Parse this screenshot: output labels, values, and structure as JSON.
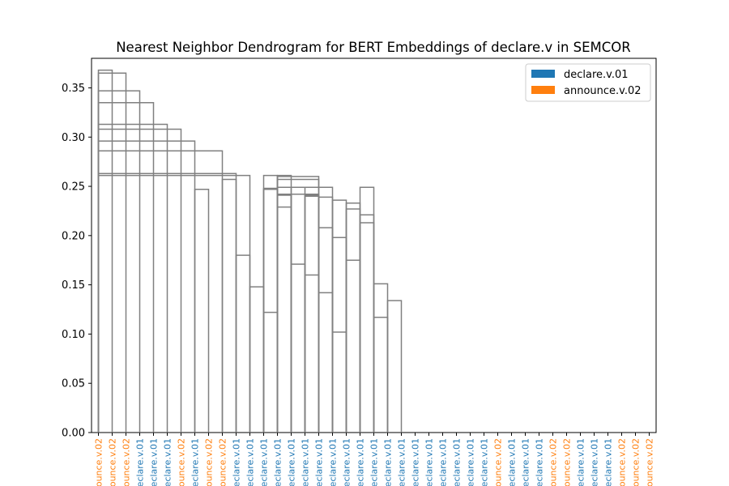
{
  "chart_data": {
    "type": "dendrogram",
    "title": "Nearest Neighbor Dendrogram for BERT Embeddings of declare.v in SEMCOR",
    "ylim": [
      0,
      0.38
    ],
    "yticks": [
      "0.00",
      "0.05",
      "0.10",
      "0.15",
      "0.20",
      "0.25",
      "0.30",
      "0.35"
    ],
    "legend": {
      "position": "top-right",
      "entries": [
        {
          "label": "declare.v.01",
          "color": "#1f77b4"
        },
        {
          "label": "announce.v.02",
          "color": "#ff7f0e"
        }
      ]
    },
    "link_color": "#808080",
    "leaves": [
      {
        "label": "announce.v.02",
        "color": "#ff7f0e"
      },
      {
        "label": "announce.v.02",
        "color": "#ff7f0e"
      },
      {
        "label": "announce.v.02",
        "color": "#ff7f0e"
      },
      {
        "label": "declare.v.01",
        "color": "#1f77b4"
      },
      {
        "label": "declare.v.01",
        "color": "#1f77b4"
      },
      {
        "label": "declare.v.01",
        "color": "#1f77b4"
      },
      {
        "label": "announce.v.02",
        "color": "#ff7f0e"
      },
      {
        "label": "declare.v.01",
        "color": "#1f77b4"
      },
      {
        "label": "announce.v.02",
        "color": "#ff7f0e"
      },
      {
        "label": "announce.v.02",
        "color": "#ff7f0e"
      },
      {
        "label": "declare.v.01",
        "color": "#1f77b4"
      },
      {
        "label": "declare.v.01",
        "color": "#1f77b4"
      },
      {
        "label": "declare.v.01",
        "color": "#1f77b4"
      },
      {
        "label": "declare.v.01",
        "color": "#1f77b4"
      },
      {
        "label": "declare.v.01",
        "color": "#1f77b4"
      },
      {
        "label": "declare.v.01",
        "color": "#1f77b4"
      },
      {
        "label": "declare.v.01",
        "color": "#1f77b4"
      },
      {
        "label": "declare.v.01",
        "color": "#1f77b4"
      },
      {
        "label": "declare.v.01",
        "color": "#1f77b4"
      },
      {
        "label": "declare.v.01",
        "color": "#1f77b4"
      },
      {
        "label": "declare.v.01",
        "color": "#1f77b4"
      },
      {
        "label": "declare.v.01",
        "color": "#1f77b4"
      },
      {
        "label": "declare.v.01",
        "color": "#1f77b4"
      },
      {
        "label": "declare.v.01",
        "color": "#1f77b4"
      },
      {
        "label": "declare.v.01",
        "color": "#1f77b4"
      },
      {
        "label": "declare.v.01",
        "color": "#1f77b4"
      },
      {
        "label": "declare.v.01",
        "color": "#1f77b4"
      },
      {
        "label": "declare.v.01",
        "color": "#1f77b4"
      },
      {
        "label": "declare.v.01",
        "color": "#1f77b4"
      },
      {
        "label": "announce.v.02",
        "color": "#ff7f0e"
      },
      {
        "label": "declare.v.01",
        "color": "#1f77b4"
      },
      {
        "label": "declare.v.01",
        "color": "#1f77b4"
      },
      {
        "label": "declare.v.01",
        "color": "#1f77b4"
      },
      {
        "label": "announce.v.02",
        "color": "#ff7f0e"
      },
      {
        "label": "announce.v.02",
        "color": "#ff7f0e"
      },
      {
        "label": "declare.v.01",
        "color": "#1f77b4"
      },
      {
        "label": "declare.v.01",
        "color": "#1f77b4"
      },
      {
        "label": "declare.v.01",
        "color": "#1f77b4"
      },
      {
        "label": "announce.v.02",
        "color": "#ff7f0e"
      },
      {
        "label": "announce.v.02",
        "color": "#ff7f0e"
      },
      {
        "label": "announce.v.02",
        "color": "#ff7f0e"
      }
    ],
    "merges": [
      [
        0,
        1,
        0.368
      ],
      [
        0,
        2,
        0.365
      ],
      [
        0,
        3,
        0.347
      ],
      [
        0,
        4,
        0.335
      ],
      [
        0,
        5,
        0.313
      ],
      [
        0,
        6,
        0.308
      ],
      [
        0,
        7,
        0.296
      ],
      [
        7,
        8,
        0.247
      ],
      [
        0,
        9,
        0.286
      ],
      [
        0,
        10,
        0.263
      ],
      [
        12,
        13,
        0.122
      ],
      [
        11,
        12,
        0.148
      ],
      [
        10,
        11,
        0.18
      ],
      [
        9,
        10,
        0.257
      ],
      [
        0,
        11,
        0.261
      ],
      [
        13,
        14,
        0.261
      ],
      [
        13,
        15,
        0.249
      ],
      [
        13,
        16,
        0.26
      ],
      [
        17,
        18,
        0.102
      ],
      [
        16,
        17,
        0.142
      ],
      [
        15,
        16,
        0.16
      ],
      [
        14,
        15,
        0.171
      ],
      [
        18,
        19,
        0.175
      ],
      [
        14,
        16,
        0.242
      ],
      [
        14,
        17,
        0.249
      ],
      [
        20,
        21,
        0.117
      ],
      [
        19,
        20,
        0.249
      ],
      [
        13,
        16,
        0.257
      ],
      [
        12,
        13,
        0.261
      ],
      [
        12,
        13,
        0.248
      ],
      [
        13,
        14,
        0.229
      ],
      [
        12,
        13,
        0.247
      ],
      [
        13,
        14,
        0.242
      ],
      [
        13,
        14,
        0.241
      ],
      [
        19,
        20,
        0.213
      ],
      [
        18,
        19,
        0.227
      ],
      [
        15,
        16,
        0.241
      ],
      [
        17,
        18,
        0.198
      ],
      [
        16,
        17,
        0.208
      ],
      [
        21,
        22,
        0.134
      ],
      [
        20,
        21,
        0.151
      ],
      [
        19,
        20,
        0.221
      ],
      [
        18,
        19,
        0.233
      ],
      [
        17,
        18,
        0.236
      ],
      [
        16,
        17,
        0.239
      ],
      [
        15,
        16,
        0.24
      ]
    ]
  }
}
